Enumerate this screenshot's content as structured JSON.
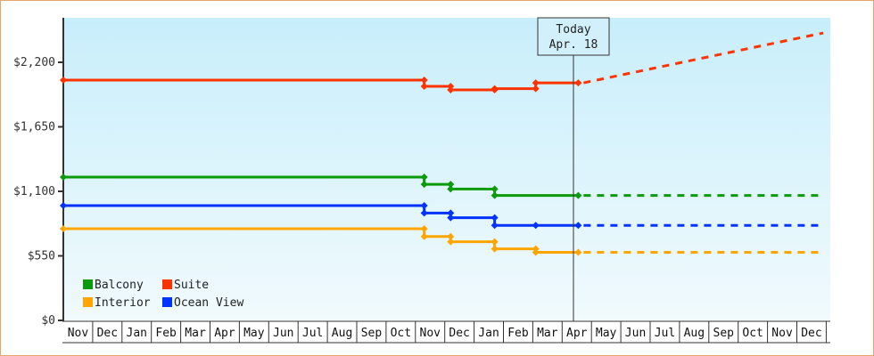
{
  "chart_data": {
    "type": "line",
    "title": "",
    "xlabel": "",
    "ylabel": "",
    "ylim": [
      0,
      2500
    ],
    "y_ticks": [
      {
        "value": 0,
        "label": "$0"
      },
      {
        "value": 550,
        "label": "$550"
      },
      {
        "value": 1100,
        "label": "$1,100"
      },
      {
        "value": 1650,
        "label": "$1,650"
      },
      {
        "value": 2200,
        "label": "$2,200"
      }
    ],
    "x_months": [
      "Nov",
      "Dec",
      "Jan",
      "Feb",
      "Mar",
      "Apr",
      "May",
      "Jun",
      "Jul",
      "Aug",
      "Sep",
      "Oct",
      "Nov",
      "Dec",
      "Jan",
      "Feb",
      "Mar",
      "Apr",
      "May",
      "Jun",
      "Jul",
      "Aug",
      "Sep",
      "Oct",
      "Nov",
      "Dec"
    ],
    "today_marker": {
      "line1": "Today",
      "line2": "Apr. 18",
      "month_index": 17.55
    },
    "legend": [
      {
        "name": "Balcony",
        "color": "#0a9a0a"
      },
      {
        "name": "Suite",
        "color": "#ff3300"
      },
      {
        "name": "Interior",
        "color": "#ffa500"
      },
      {
        "name": "Ocean View",
        "color": "#0033ff"
      }
    ],
    "series": [
      {
        "name": "Suite",
        "color": "#ff3300",
        "steps": [
          [
            0,
            2048
          ],
          [
            12.3,
            2048
          ],
          [
            12.3,
            1995
          ],
          [
            13.2,
            1995
          ],
          [
            13.2,
            1965
          ],
          [
            14.7,
            1965
          ],
          [
            14.7,
            1975
          ],
          [
            16.1,
            1975
          ],
          [
            16.1,
            2025
          ],
          [
            17.55,
            2025
          ]
        ],
        "projection_end": [
          25.9,
          2450
        ]
      },
      {
        "name": "Balcony",
        "color": "#0a9a0a",
        "steps": [
          [
            0,
            1221
          ],
          [
            12.3,
            1221
          ],
          [
            12.3,
            1160
          ],
          [
            13.2,
            1160
          ],
          [
            13.2,
            1120
          ],
          [
            14.7,
            1120
          ],
          [
            14.7,
            1065
          ],
          [
            17.55,
            1065
          ]
        ],
        "projection_end": [
          25.9,
          1065
        ]
      },
      {
        "name": "Ocean View",
        "color": "#0033ff",
        "steps": [
          [
            0,
            979
          ],
          [
            12.3,
            979
          ],
          [
            12.3,
            915
          ],
          [
            13.2,
            915
          ],
          [
            13.2,
            875
          ],
          [
            14.7,
            875
          ],
          [
            14.7,
            810
          ],
          [
            16.1,
            810
          ],
          [
            17.55,
            810
          ]
        ],
        "projection_end": [
          25.9,
          810
        ]
      },
      {
        "name": "Interior",
        "color": "#ffa500",
        "steps": [
          [
            0,
            781
          ],
          [
            12.3,
            781
          ],
          [
            12.3,
            715
          ],
          [
            13.2,
            715
          ],
          [
            13.2,
            670
          ],
          [
            14.7,
            670
          ],
          [
            14.7,
            610
          ],
          [
            16.1,
            610
          ],
          [
            16.1,
            580
          ],
          [
            17.55,
            580
          ]
        ],
        "projection_end": [
          25.9,
          580
        ]
      }
    ]
  }
}
